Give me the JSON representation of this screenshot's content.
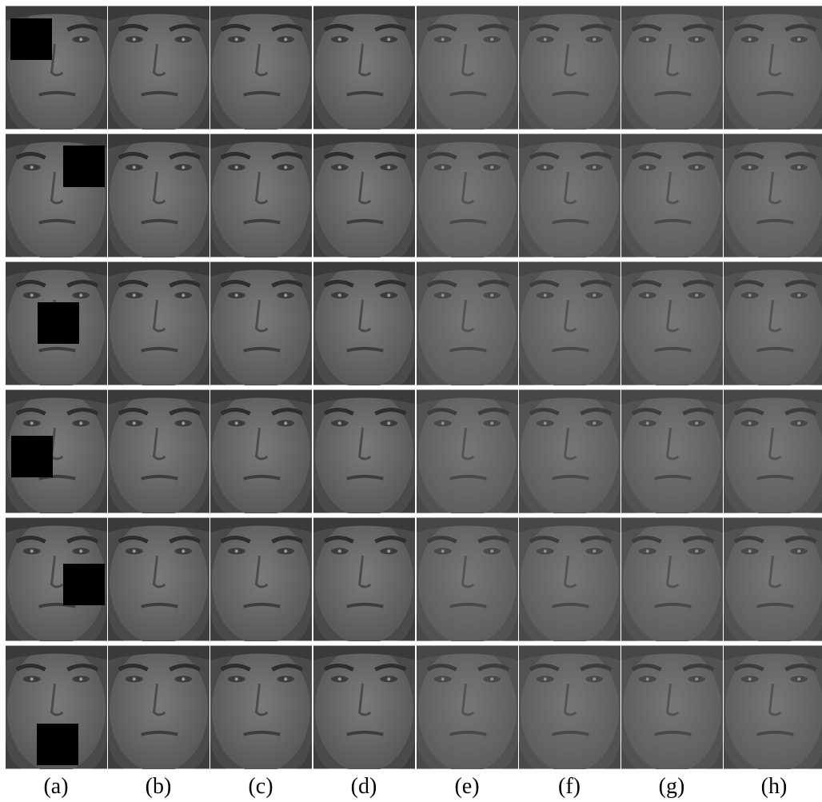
{
  "labels": [
    "(a)",
    "(b)",
    "(c)",
    "(d)",
    "(e)",
    "(f)",
    "(g)",
    "(h)"
  ]
}
